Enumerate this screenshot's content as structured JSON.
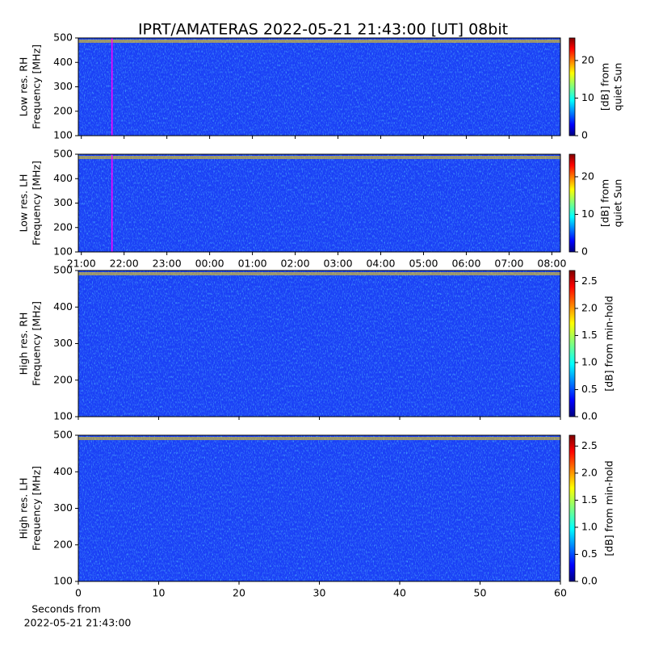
{
  "title": "IPRT/AMATERAS 2022-05-21 21:43:00 [UT]   08bit",
  "chart_data": [
    {
      "type": "spectrogram",
      "ylabel": [
        "Low res. RH",
        "Frequency [MHz]"
      ],
      "ylim": [
        100,
        500
      ],
      "yticks": [
        100,
        200,
        300,
        400,
        500
      ],
      "xlim": [
        20.93,
        32.2
      ],
      "clim": [
        0,
        26
      ],
      "cticks": [
        0,
        10,
        20
      ],
      "clabel": [
        "[dB] from",
        "quiet Sun"
      ],
      "marker_x": 21.717,
      "marker_color": "#ff00ff"
    },
    {
      "type": "spectrogram",
      "ylabel": [
        "Low res. LH",
        "Frequency [MHz]"
      ],
      "ylim": [
        100,
        500
      ],
      "yticks": [
        100,
        200,
        300,
        400,
        500
      ],
      "xlim": [
        20.93,
        32.2
      ],
      "xticks": [
        {
          "value": 21,
          "label": "21:00"
        },
        {
          "value": 22,
          "label": "22:00"
        },
        {
          "value": 23,
          "label": "23:00"
        },
        {
          "value": 24,
          "label": "00:00"
        },
        {
          "value": 25,
          "label": "01:00"
        },
        {
          "value": 26,
          "label": "02:00"
        },
        {
          "value": 27,
          "label": "03:00"
        },
        {
          "value": 28,
          "label": "04:00"
        },
        {
          "value": 29,
          "label": "05:00"
        },
        {
          "value": 30,
          "label": "06:00"
        },
        {
          "value": 31,
          "label": "07:00"
        },
        {
          "value": 32,
          "label": "08:00"
        }
      ],
      "clim": [
        0,
        26
      ],
      "cticks": [
        0,
        10,
        20
      ],
      "clabel": [
        "[dB] from",
        "quiet Sun"
      ],
      "marker_x": 21.717,
      "marker_color": "#ff00ff"
    },
    {
      "type": "spectrogram",
      "ylabel": [
        "High res. RH",
        "Frequency [MHz]"
      ],
      "ylim": [
        100,
        500
      ],
      "yticks": [
        100,
        200,
        300,
        400,
        500
      ],
      "xlim": [
        0,
        60
      ],
      "clim": [
        0,
        2.7
      ],
      "cticks": [
        {
          "value": 0,
          "label": "0.0"
        },
        {
          "value": 0.5,
          "label": "0.5"
        },
        {
          "value": 1,
          "label": "1.0"
        },
        {
          "value": 1.5,
          "label": "1.5"
        },
        {
          "value": 2,
          "label": "2.0"
        },
        {
          "value": 2.5,
          "label": "2.5"
        }
      ],
      "clabel": [
        "[dB] from min-hold"
      ]
    },
    {
      "type": "spectrogram",
      "ylabel": [
        "High res. LH",
        "Frequency [MHz]"
      ],
      "ylim": [
        100,
        500
      ],
      "yticks": [
        100,
        200,
        300,
        400,
        500
      ],
      "xlim": [
        0,
        60
      ],
      "xticks": [
        0,
        10,
        20,
        30,
        40,
        50,
        60
      ],
      "clim": [
        0,
        2.7
      ],
      "cticks": [
        {
          "value": 0,
          "label": "0.0"
        },
        {
          "value": 0.5,
          "label": "0.5"
        },
        {
          "value": 1,
          "label": "1.0"
        },
        {
          "value": 1.5,
          "label": "1.5"
        },
        {
          "value": 2,
          "label": "2.0"
        },
        {
          "value": 2.5,
          "label": "2.5"
        }
      ],
      "clabel": [
        "[dB] from min-hold"
      ],
      "xlabel": [
        "Seconds from",
        "2022-05-21 21:43:00"
      ]
    }
  ]
}
